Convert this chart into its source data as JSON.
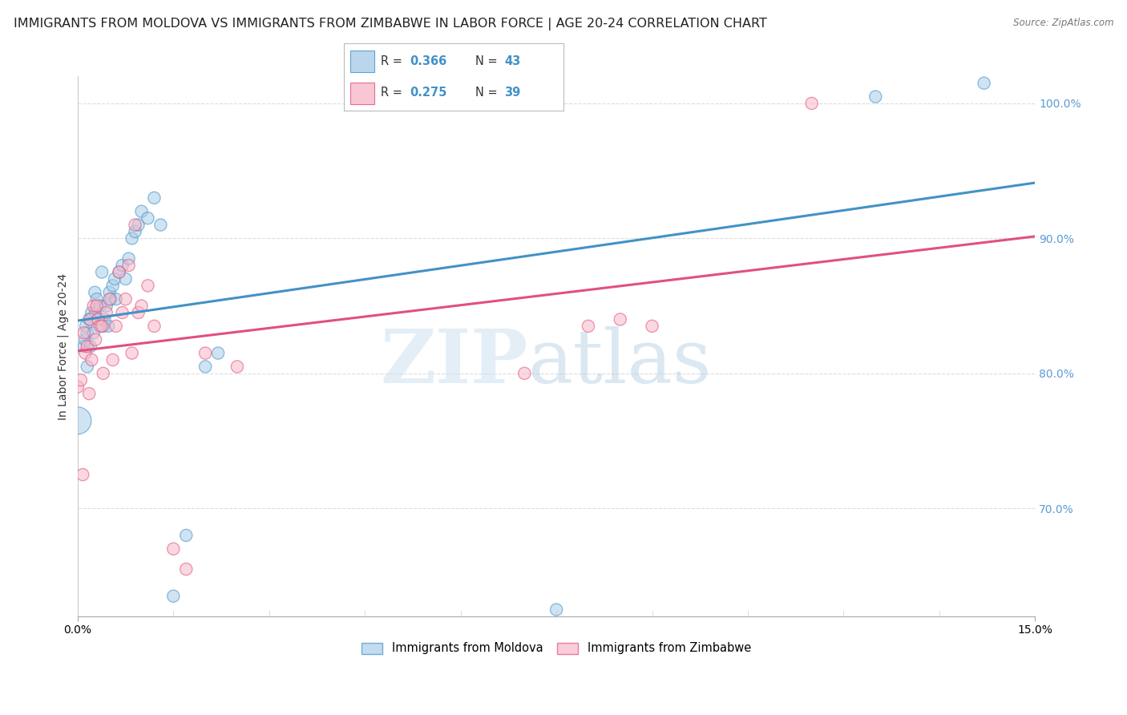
{
  "title": "IMMIGRANTS FROM MOLDOVA VS IMMIGRANTS FROM ZIMBABWE IN LABOR FORCE | AGE 20-24 CORRELATION CHART",
  "source": "Source: ZipAtlas.com",
  "ylabel": "In Labor Force | Age 20-24",
  "xlim": [
    0.0,
    15.0
  ],
  "ylim": [
    62.0,
    102.0
  ],
  "yticks": [
    70.0,
    80.0,
    90.0,
    100.0
  ],
  "ytick_labels": [
    "70.0%",
    "80.0%",
    "90.0%",
    "100.0%"
  ],
  "color_moldova": "#a8cce8",
  "color_zimbabwe": "#f9b8c8",
  "color_line_moldova": "#4292c6",
  "color_line_zimbabwe": "#e05080",
  "moldova_x": [
    0.0,
    0.1,
    0.12,
    0.13,
    0.15,
    0.15,
    0.18,
    0.2,
    0.22,
    0.25,
    0.27,
    0.28,
    0.3,
    0.32,
    0.35,
    0.38,
    0.4,
    0.42,
    0.45,
    0.48,
    0.5,
    0.52,
    0.55,
    0.58,
    0.6,
    0.65,
    0.7,
    0.75,
    0.8,
    0.85,
    0.9,
    0.95,
    1.0,
    1.1,
    1.2,
    1.3,
    1.5,
    1.7,
    2.0,
    2.2,
    7.5,
    12.5,
    14.2
  ],
  "moldova_y": [
    76.5,
    82.0,
    82.5,
    83.5,
    80.5,
    83.0,
    84.0,
    82.0,
    84.5,
    83.0,
    86.0,
    84.5,
    85.5,
    84.0,
    85.0,
    87.5,
    83.5,
    84.0,
    85.0,
    83.5,
    86.0,
    85.5,
    86.5,
    87.0,
    85.5,
    87.5,
    88.0,
    87.0,
    88.5,
    90.0,
    90.5,
    91.0,
    92.0,
    91.5,
    93.0,
    91.0,
    63.5,
    68.0,
    80.5,
    81.5,
    62.5,
    100.5,
    101.5
  ],
  "moldova_sizes_raw": [
    5,
    1,
    1,
    1,
    1,
    1,
    1,
    1,
    1,
    1,
    1,
    1,
    1,
    1,
    1,
    1,
    1,
    1,
    1,
    1,
    1,
    1,
    1,
    1,
    1,
    1,
    1,
    1,
    1,
    1,
    1,
    1,
    1,
    1,
    1,
    1,
    1,
    1,
    1,
    1,
    1,
    1,
    1
  ],
  "zimbabwe_x": [
    0.0,
    0.05,
    0.08,
    0.1,
    0.12,
    0.15,
    0.18,
    0.2,
    0.22,
    0.25,
    0.28,
    0.3,
    0.32,
    0.35,
    0.38,
    0.4,
    0.45,
    0.5,
    0.55,
    0.6,
    0.65,
    0.7,
    0.75,
    0.8,
    0.85,
    0.9,
    0.95,
    1.0,
    1.1,
    1.2,
    1.5,
    1.7,
    2.0,
    2.5,
    7.0,
    8.0,
    8.5,
    9.0,
    11.5
  ],
  "zimbabwe_y": [
    79.0,
    79.5,
    72.5,
    83.0,
    81.5,
    82.0,
    78.5,
    84.0,
    81.0,
    85.0,
    82.5,
    85.0,
    84.0,
    83.5,
    83.5,
    80.0,
    84.5,
    85.5,
    81.0,
    83.5,
    87.5,
    84.5,
    85.5,
    88.0,
    81.5,
    91.0,
    84.5,
    85.0,
    86.5,
    83.5,
    67.0,
    65.5,
    81.5,
    80.5,
    80.0,
    83.5,
    84.0,
    83.5,
    100.0
  ],
  "zimbabwe_sizes_raw": [
    1,
    1,
    1,
    1,
    1,
    1,
    1,
    1,
    1,
    1,
    1,
    1,
    1,
    1,
    1,
    1,
    1,
    1,
    1,
    1,
    1,
    1,
    1,
    1,
    1,
    1,
    1,
    1,
    1,
    1,
    1,
    1,
    1,
    1,
    1,
    1,
    1,
    1,
    1
  ],
  "watermark_zip": "ZIP",
  "watermark_atlas": "atlas",
  "background_color": "#ffffff",
  "grid_color": "#dddddd",
  "title_fontsize": 11.5,
  "label_fontsize": 10,
  "tick_fontsize": 10,
  "legend_R1": "0.366",
  "legend_N1": "43",
  "legend_R2": "0.275",
  "legend_N2": "39",
  "legend_label1": "Immigrants from Moldova",
  "legend_label2": "Immigrants from Zimbabwe"
}
